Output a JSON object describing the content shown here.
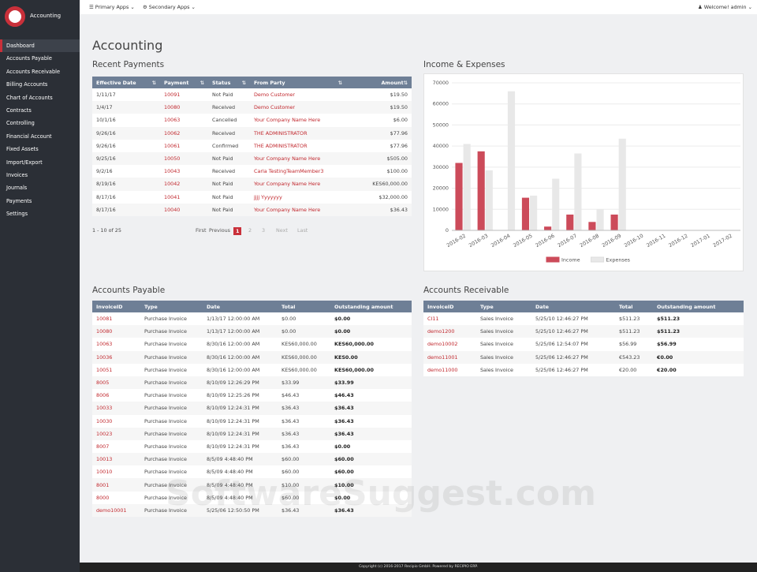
{
  "topbar": {
    "primary_apps": "Primary Apps",
    "secondary_apps": "Secondary Apps",
    "welcome": "Welcome! admin"
  },
  "sidebar": {
    "app_name": "Accounting",
    "menu": [
      "Dashboard",
      "Accounts Payable",
      "Accounts Receivable",
      "Billing Accounts",
      "Chart of Accounts",
      "Contracts",
      "Controlling",
      "Financial Account",
      "Fixed Assets",
      "Import/Export",
      "Invoices",
      "Journals",
      "Payments",
      "Settings"
    ]
  },
  "page_title": "Accounting",
  "recent_payments": {
    "title": "Recent Payments",
    "columns": [
      "Effective Date",
      "Payment",
      "Status",
      "From Party",
      "Amount"
    ],
    "rows": [
      [
        "1/11/17",
        "10091",
        "Not Paid",
        "Demo Customer",
        "$19.50"
      ],
      [
        "1/4/17",
        "10080",
        "Received",
        "Demo Customer",
        "$19.50"
      ],
      [
        "10/1/16",
        "10063",
        "Cancelled",
        "Your Company Name Here",
        "$6.00"
      ],
      [
        "9/26/16",
        "10062",
        "Received",
        "THE ADMINISTRATOR",
        "$77.96"
      ],
      [
        "9/26/16",
        "10061",
        "Confirmed",
        "THE ADMINISTRATOR",
        "$77.96"
      ],
      [
        "9/25/16",
        "10050",
        "Not Paid",
        "Your Company Name Here",
        "$505.00"
      ],
      [
        "9/2/16",
        "10043",
        "Received",
        "Carla TestingTeamMember3",
        "$100.00"
      ],
      [
        "8/19/16",
        "10042",
        "Not Paid",
        "Your Company Name Here",
        "KES60,000.00"
      ],
      [
        "8/17/16",
        "10041",
        "Not Paid",
        "jjjj Yyyyyyy",
        "$32,000.00"
      ],
      [
        "8/17/16",
        "10040",
        "Not Paid",
        "Your Company Name Here",
        "$36.43"
      ]
    ],
    "range_info": "1 - 10 of 25",
    "pagination": [
      "First",
      "Previous",
      "1",
      "2",
      "3",
      "Next",
      "Last"
    ]
  },
  "chart_data": {
    "type": "bar",
    "title": "Income & Expenses",
    "categories": [
      "2016-02",
      "2016-03",
      "2016-04",
      "2016-05",
      "2016-06",
      "2016-07",
      "2016-08",
      "2016-09",
      "2016-10",
      "2016-11",
      "2016-12",
      "2017-01",
      "2017-02"
    ],
    "series": [
      {
        "name": "Income",
        "color": "#cc4b5a",
        "values": [
          32000,
          37500,
          0,
          15500,
          1800,
          7500,
          4000,
          7500,
          0,
          0,
          0,
          0,
          0
        ]
      },
      {
        "name": "Expenses",
        "color": "#e8e8e8",
        "values": [
          41000,
          28500,
          66000,
          16500,
          24500,
          36500,
          10000,
          43500,
          0,
          0,
          0,
          0,
          0
        ]
      }
    ],
    "ylim": [
      0,
      70000
    ],
    "yticks": [
      0,
      10000,
      20000,
      30000,
      40000,
      50000,
      60000,
      70000
    ],
    "grid": true,
    "legend": "bottom"
  },
  "accounts_payable": {
    "title": "Accounts Payable",
    "columns": [
      "InvoiceID",
      "Type",
      "Date",
      "Total",
      "Outstanding amount"
    ],
    "rows": [
      [
        "10081",
        "Purchase Invoice",
        "1/13/17 12:00:00 AM",
        "$0.00",
        "$0.00"
      ],
      [
        "10080",
        "Purchase Invoice",
        "1/13/17 12:00:00 AM",
        "$0.00",
        "$0.00"
      ],
      [
        "10063",
        "Purchase Invoice",
        "8/30/16 12:00:00 AM",
        "KES60,000.00",
        "KES60,000.00"
      ],
      [
        "10036",
        "Purchase Invoice",
        "8/30/16 12:00:00 AM",
        "KES60,000.00",
        "KES0.00"
      ],
      [
        "10051",
        "Purchase Invoice",
        "8/30/16 12:00:00 AM",
        "KES60,000.00",
        "KES60,000.00"
      ],
      [
        "8005",
        "Purchase Invoice",
        "8/10/09 12:26:29 PM",
        "$33.99",
        "$33.99"
      ],
      [
        "8006",
        "Purchase Invoice",
        "8/10/09 12:25:26 PM",
        "$46.43",
        "$46.43"
      ],
      [
        "10033",
        "Purchase Invoice",
        "8/10/09 12:24:31 PM",
        "$36.43",
        "$36.43"
      ],
      [
        "10030",
        "Purchase Invoice",
        "8/10/09 12:24:31 PM",
        "$36.43",
        "$36.43"
      ],
      [
        "10023",
        "Purchase Invoice",
        "8/10/09 12:24:31 PM",
        "$36.43",
        "$36.43"
      ],
      [
        "8007",
        "Purchase Invoice",
        "8/10/09 12:24:31 PM",
        "$36.43",
        "$0.00"
      ],
      [
        "10013",
        "Purchase Invoice",
        "8/5/09 4:48:40 PM",
        "$60.00",
        "$60.00"
      ],
      [
        "10010",
        "Purchase Invoice",
        "8/5/09 4:48:40 PM",
        "$60.00",
        "$60.00"
      ],
      [
        "8001",
        "Purchase Invoice",
        "8/5/09 4:48:40 PM",
        "$10.00",
        "$10.00"
      ],
      [
        "8000",
        "Purchase Invoice",
        "8/5/09 4:48:40 PM",
        "$60.00",
        "$0.00"
      ],
      [
        "demo10001",
        "Purchase Invoice",
        "5/25/06 12:50:50 PM",
        "$36.43",
        "$36.43"
      ]
    ]
  },
  "accounts_receivable": {
    "title": "Accounts Receivable",
    "columns": [
      "InvoiceID",
      "Type",
      "Date",
      "Total",
      "Outstanding amount"
    ],
    "rows": [
      [
        "CI11",
        "Sales Invoice",
        "5/25/10 12:46:27 PM",
        "$511.23",
        "$511.23"
      ],
      [
        "demo1200",
        "Sales Invoice",
        "5/25/10 12:46:27 PM",
        "$511.23",
        "$511.23"
      ],
      [
        "demo10002",
        "Sales Invoice",
        "5/25/06 12:54:07 PM",
        "$56.99",
        "$56.99"
      ],
      [
        "demo11001",
        "Sales Invoice",
        "5/25/06 12:46:27 PM",
        "€543.23",
        "€0.00"
      ],
      [
        "demo11000",
        "Sales Invoice",
        "5/25/06 12:46:27 PM",
        "€20.00",
        "€20.00"
      ]
    ]
  },
  "watermark": "SoftwareSuggest.com",
  "footer": "Copyright (c) 2016-2017 Recipio GmbH. Powered by RECIPIO ERP."
}
